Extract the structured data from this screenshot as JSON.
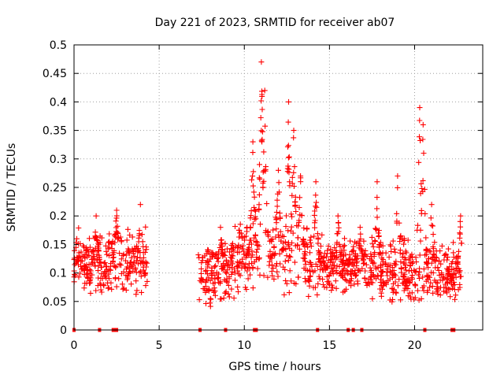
{
  "chart_data": {
    "type": "scatter",
    "title": "Day 221 of 2023, SRMTID for receiver ab07",
    "xlabel": "GPS time / hours",
    "ylabel": "SRMTID / TECUs",
    "xlim": [
      0,
      24
    ],
    "ylim": [
      0,
      0.5
    ],
    "xticks": [
      0,
      5,
      10,
      15,
      20
    ],
    "yticks": [
      0,
      0.05,
      0.1,
      0.15,
      0.2,
      0.25,
      0.3,
      0.35,
      0.4,
      0.45,
      0.5
    ],
    "xtick_labels": [
      "0",
      "5",
      "10",
      "15",
      "20"
    ],
    "ytick_labels": [
      "0",
      "0.05",
      "0.1",
      "0.15",
      "0.2",
      "0.25",
      "0.3",
      "0.35",
      "0.4",
      "0.45",
      "0.5"
    ],
    "grid": true,
    "marker": "+",
    "color": "#ff0000",
    "segments": [
      {
        "start": 0.0,
        "end": 4.3,
        "base": 0.115,
        "spread": 0.05,
        "peaks": [
          [
            0.3,
            0.13
          ],
          [
            1.3,
            0.2
          ],
          [
            2.5,
            0.21
          ],
          [
            3.9,
            0.22
          ]
        ]
      },
      {
        "start": 7.3,
        "end": 9.3,
        "base": 0.1,
        "spread": 0.05,
        "peaks": [
          [
            8.6,
            0.18
          ]
        ]
      },
      {
        "start": 9.3,
        "end": 13.9,
        "base": 0.13,
        "spread": 0.06,
        "peaks": [
          [
            10.5,
            0.33
          ],
          [
            11.0,
            0.47
          ],
          [
            11.2,
            0.42
          ],
          [
            12.0,
            0.28
          ],
          [
            12.6,
            0.4
          ],
          [
            12.9,
            0.35
          ],
          [
            13.3,
            0.27
          ]
        ]
      },
      {
        "start": 13.9,
        "end": 17.5,
        "base": 0.11,
        "spread": 0.045,
        "peaks": [
          [
            14.2,
            0.26
          ],
          [
            15.5,
            0.2
          ],
          [
            16.8,
            0.18
          ]
        ]
      },
      {
        "start": 17.5,
        "end": 20.7,
        "base": 0.1,
        "spread": 0.05,
        "peaks": [
          [
            17.8,
            0.26
          ],
          [
            19.0,
            0.27
          ],
          [
            20.3,
            0.39
          ],
          [
            20.5,
            0.36
          ]
        ]
      },
      {
        "start": 20.7,
        "end": 22.8,
        "base": 0.1,
        "spread": 0.05,
        "peaks": [
          [
            21.0,
            0.22
          ],
          [
            22.7,
            0.2
          ]
        ]
      }
    ],
    "zero_markers_x": [
      0.0,
      1.5,
      2.3,
      2.4,
      2.5,
      7.4,
      8.9,
      10.6,
      10.7,
      14.3,
      16.1,
      16.4,
      16.9,
      20.6,
      22.2,
      22.3
    ]
  }
}
